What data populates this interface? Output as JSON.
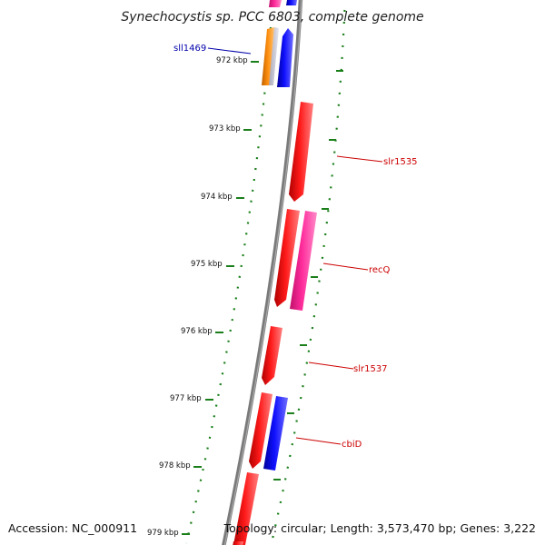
{
  "title": "Synechocystis sp. PCC 6803, complete genome",
  "footer": {
    "accession": "Accession: NC_000911",
    "topology": "Topology: circular; Length: 3,573,470 bp; Genes: 3,222"
  },
  "ticks": [
    "972 kbp",
    "973 kbp",
    "974 kbp",
    "975 kbp",
    "976 kbp",
    "977 kbp",
    "978 kbp",
    "979 kbp"
  ],
  "gene_labels": [
    {
      "text": "sll1469",
      "color": "#0000aa"
    },
    {
      "text": "slr1535",
      "color": "#cc0000"
    },
    {
      "text": "recQ",
      "color": "#cc0000"
    },
    {
      "text": "slr1537",
      "color": "#cc0000"
    },
    {
      "text": "cbiD",
      "color": "#cc0000"
    }
  ],
  "colors": {
    "forward_gene": "#ff0000",
    "reverse_gene": "#0000ff",
    "other_forward_gene": "#ff1493",
    "other_reverse_gene": "#ff8c00",
    "backbone": "#808080",
    "gc_skew_dots": "#1a7f1a",
    "tick_color": "#1a7f1a"
  }
}
